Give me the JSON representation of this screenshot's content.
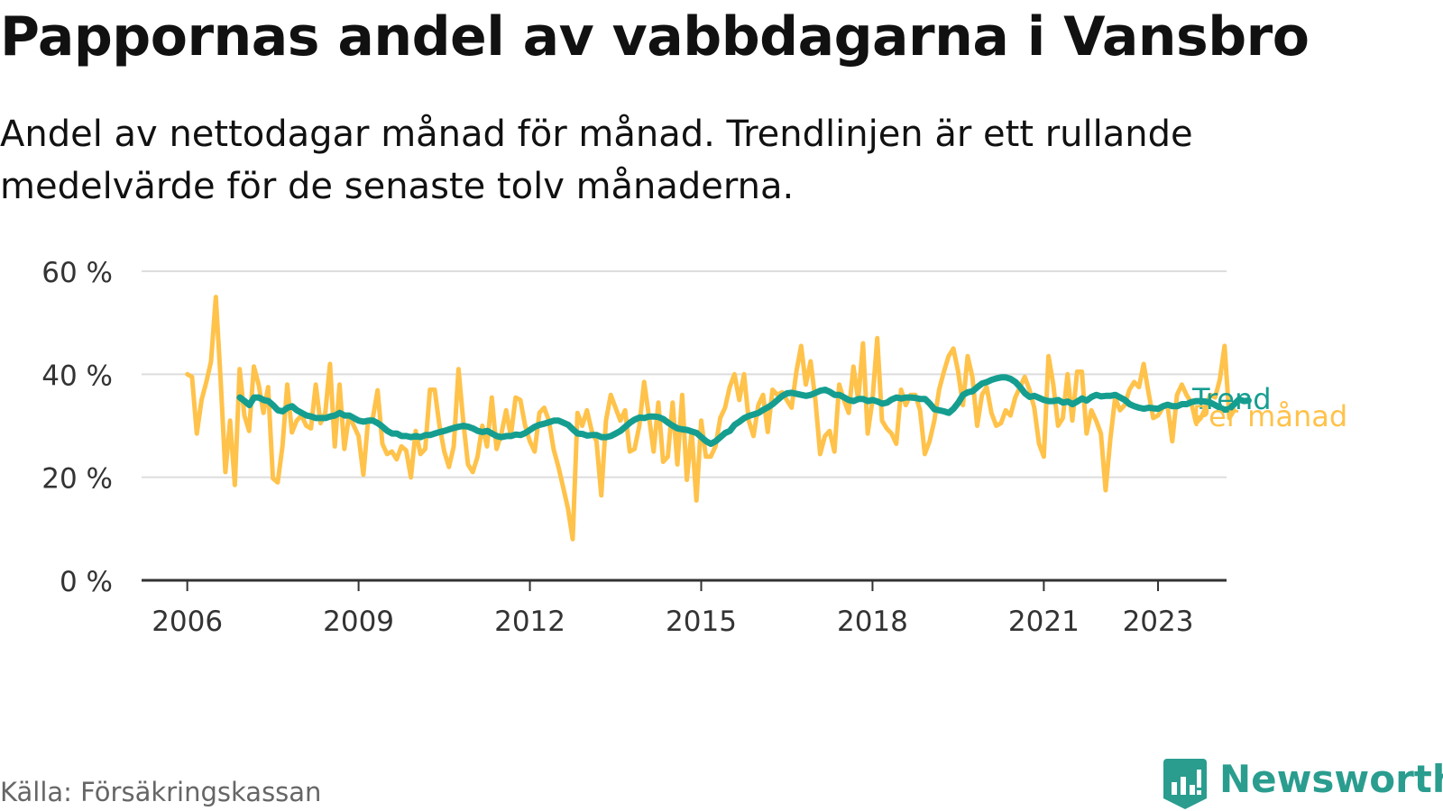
{
  "header": {
    "title": "Pappornas andel av vabbdagarna i Vansbro",
    "subtitle": "Andel av nettodagar månad för månad. Trendlinjen är ett rullande medelvärde för de senaste tolv månaderna."
  },
  "footer": {
    "source": "Källa: Försäkringskassan",
    "brand": "Newsworthy"
  },
  "colors": {
    "trend": "#159e90",
    "monthly": "#ffc24a",
    "grid": "#dddddd",
    "axis": "#333333",
    "brand": "#2a9d8f"
  },
  "chart_data": {
    "type": "line",
    "title": "Pappornas andel av vabbdagarna i Vansbro",
    "xlabel": "",
    "ylabel": "",
    "xlim": [
      2005.2,
      2024.2
    ],
    "ylim": [
      0,
      60
    ],
    "y_ticks": [
      0,
      20,
      40,
      60
    ],
    "y_tick_labels": [
      "0 %",
      "20 %",
      "40 %",
      "60 %"
    ],
    "x_ticks": [
      2006,
      2009,
      2012,
      2015,
      2018,
      2021,
      2023
    ],
    "x_tick_labels": [
      "2006",
      "2009",
      "2012",
      "2015",
      "2018",
      "2021",
      "2023"
    ],
    "grid": true,
    "legend": "inline-right",
    "series": [
      {
        "name": "Per månad",
        "color": "#ffc24a",
        "start": 2006.0,
        "step": 0.08333,
        "values": [
          40,
          39.5,
          28.5,
          35,
          38.5,
          42.5,
          55,
          39,
          21,
          31,
          18.5,
          41,
          32,
          29,
          41.5,
          38,
          32.5,
          37.5,
          19.8,
          19,
          26,
          38,
          28.7,
          31,
          32,
          30,
          29.5,
          38,
          30.5,
          32.5,
          42,
          26,
          38,
          25.5,
          32,
          30,
          28,
          20.5,
          31,
          31.5,
          36.9,
          26.5,
          24.5,
          25,
          23.5,
          26,
          25.2,
          20,
          29,
          24.5,
          25.5,
          37,
          37,
          30,
          25,
          22,
          26,
          41,
          30.8,
          22.5,
          21,
          24,
          30,
          26,
          35.5,
          25.5,
          28.4,
          33,
          28,
          35.5,
          35,
          30,
          27,
          25,
          32.5,
          33.5,
          31,
          25.4,
          22,
          18,
          14,
          8,
          32.5,
          30,
          33,
          29,
          27,
          16.5,
          31,
          36,
          33.5,
          31,
          33,
          25,
          25.5,
          30,
          38.5,
          32,
          25,
          34.5,
          23,
          24,
          34.5,
          22.5,
          36,
          19.5,
          29,
          15.5,
          31,
          24,
          24,
          26,
          31.5,
          33.5,
          37.5,
          40,
          35,
          40,
          31,
          28,
          34,
          36,
          28.8,
          37,
          36,
          36.5,
          35,
          33.5,
          40.5,
          45.5,
          38,
          42.5,
          35,
          24.5,
          28,
          29,
          25,
          38,
          35,
          32.5,
          41.5,
          35,
          46,
          28.5,
          35,
          47,
          31,
          29.5,
          28.5,
          26.5,
          37,
          34,
          36,
          36,
          33,
          24.5,
          27,
          31,
          37,
          40.5,
          43.5,
          45,
          40.5,
          34,
          43.5,
          39.5,
          30,
          36,
          37.5,
          32.5,
          30,
          30.5,
          33,
          32,
          35.5,
          37.5,
          39.5,
          37,
          33.5,
          26.5,
          24,
          43.5,
          38,
          30,
          31.5,
          40,
          31,
          40.5,
          40.5,
          28.5,
          33,
          31,
          28.5,
          17.5,
          27.5,
          35.5,
          33,
          34,
          37,
          38.5,
          37.5,
          42,
          36.5,
          31.5,
          32,
          33.5,
          34,
          27,
          36,
          38,
          36,
          34.5,
          30.5,
          31.5,
          33.5,
          36,
          35.5,
          39,
          45.5,
          31.5,
          33
        ]
      },
      {
        "name": "Trend",
        "color": "#159e90",
        "start": 2006.92,
        "step": 0.08333,
        "values": [
          35.5,
          34.8,
          34,
          35.5,
          35.5,
          35,
          34.8,
          34,
          33,
          32.8,
          33.5,
          33.8,
          33,
          32.5,
          32,
          31.8,
          31.5,
          31.5,
          31.5,
          31.8,
          32,
          32.5,
          32,
          32,
          31.5,
          31,
          30.8,
          31,
          31,
          30.5,
          29.8,
          29,
          28.5,
          28.5,
          28,
          28,
          27.8,
          28,
          27.8,
          28.2,
          28.2,
          28.5,
          28.8,
          29,
          29.3,
          29.6,
          29.8,
          30,
          29.8,
          29.5,
          29,
          28.8,
          29,
          28.5,
          28,
          27.8,
          28,
          28,
          28.3,
          28.2,
          28.6,
          29.2,
          29.8,
          30.2,
          30.4,
          30.7,
          31,
          31,
          30.6,
          30.2,
          29.3,
          28.5,
          28.4,
          28.1,
          28.2,
          28.2,
          27.8,
          27.8,
          28,
          28.5,
          29,
          29.8,
          30.6,
          31.2,
          31.6,
          31.5,
          31.8,
          31.8,
          31.7,
          31.3,
          30.6,
          30,
          29.5,
          29.3,
          29.2,
          28.9,
          28.6,
          27.8,
          27,
          26.5,
          27,
          27.8,
          28.6,
          29,
          30.2,
          30.8,
          31.5,
          31.9,
          32.2,
          32.5,
          33.1,
          33.6,
          34.2,
          35,
          35.8,
          36.3,
          36.4,
          36.2,
          36,
          35.8,
          36,
          36.4,
          36.8,
          37,
          36.6,
          36,
          36,
          35.5,
          35,
          34.8,
          35.2,
          35.2,
          34.8,
          35,
          34.7,
          34.3,
          34.5,
          35.1,
          35.5,
          35.3,
          35.5,
          35.5,
          35.4,
          35.2,
          35.2,
          34.3,
          33.2,
          33,
          32.8,
          32.5,
          33.3,
          34.5,
          36,
          36.5,
          36.7,
          37.5,
          38.2,
          38.5,
          38.9,
          39.2,
          39.4,
          39.4,
          39.1,
          38.5,
          37.5,
          36.3,
          35.6,
          35.8,
          35.4,
          35,
          34.8,
          34.8,
          35,
          34.5,
          34.7,
          34.2,
          34.7,
          35.3,
          34.9,
          35.6,
          36,
          35.7,
          35.8,
          35.8,
          36,
          35.5,
          35,
          34.2,
          33.8,
          33.5,
          33.3,
          33.5,
          33.4,
          33.3,
          33.8,
          34.1,
          33.8,
          33.8,
          34.2,
          34.2,
          34.6,
          34.8,
          34.8,
          34.7,
          34.5,
          34,
          33.5,
          33.1,
          33.3,
          34.2,
          35.1,
          34.8,
          34.9
        ]
      }
    ]
  }
}
